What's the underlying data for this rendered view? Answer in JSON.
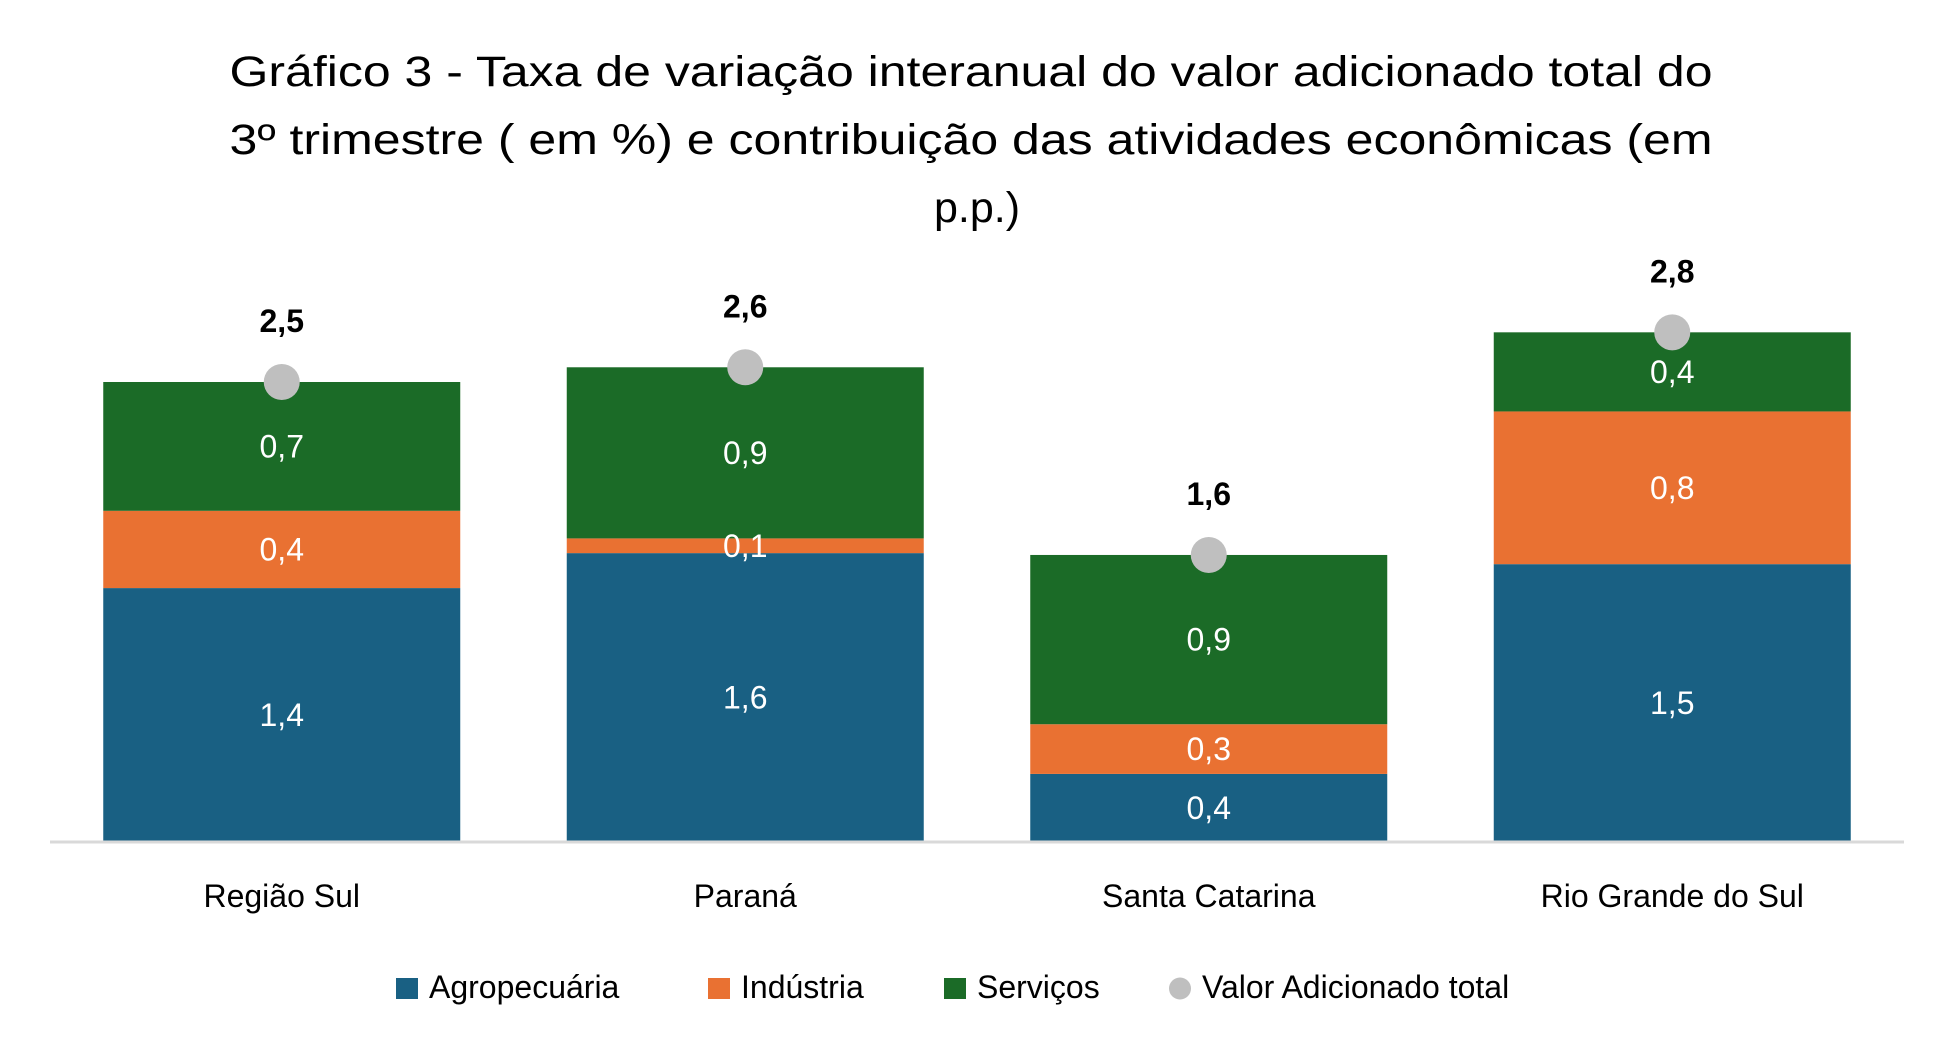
{
  "chart_data": {
    "type": "bar",
    "stacked": true,
    "title": "Gráfico 3 - Taxa de variação interanual do valor adicionado total do 3º trimestre ( em %) e contribuição das atividades econômicas (em p.p.)",
    "xlabel": "",
    "ylabel": "",
    "ylim": [
      0,
      3.5
    ],
    "grid": false,
    "legend_position": "bottom",
    "axis_color": "#D9D9D9",
    "categories": [
      "Região Sul",
      "Paraná",
      "Santa Catarina",
      "Rio Grande do Sul"
    ],
    "series": [
      {
        "name": "Agropecuária",
        "type": "bar",
        "color": "#196083",
        "values": [
          1.38,
          1.57,
          0.37,
          1.51
        ],
        "labels": [
          "1,4",
          "1,6",
          "0,4",
          "1,5"
        ]
      },
      {
        "name": "Indústria",
        "type": "bar",
        "color": "#E97132",
        "values": [
          0.42,
          0.08,
          0.27,
          0.83
        ],
        "labels": [
          "0,4",
          "0,1",
          "0,3",
          "0,8"
        ]
      },
      {
        "name": "Serviços",
        "type": "bar",
        "color": "#1B6B27",
        "values": [
          0.7,
          0.93,
          0.92,
          0.43
        ],
        "labels": [
          "0,7",
          "0,9",
          "0,9",
          "0,4"
        ]
      },
      {
        "name": "Valor Adicionado total",
        "type": "marker",
        "color": "#BFBFBF",
        "values": [
          2.5,
          2.58,
          1.56,
          2.77
        ],
        "labels": [
          "2,5",
          "2,6",
          "1,6",
          "2,8"
        ]
      }
    ]
  }
}
